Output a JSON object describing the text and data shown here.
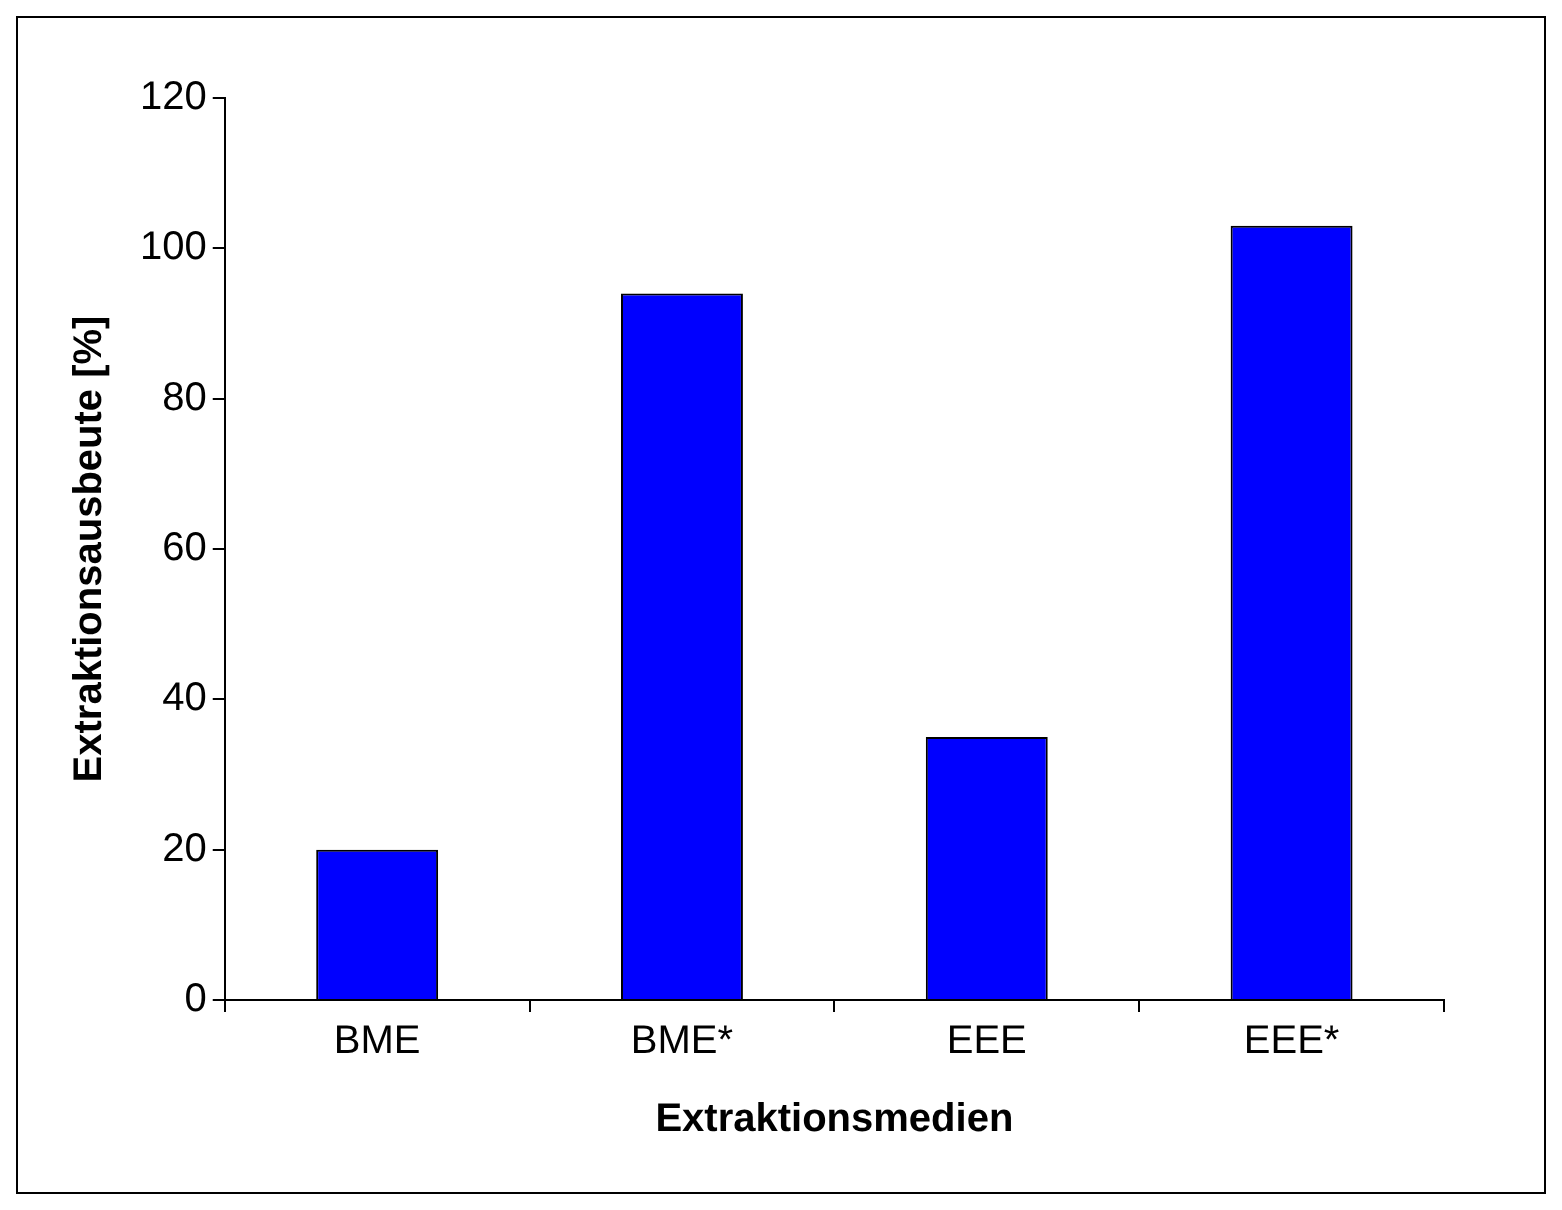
{
  "chart_data": {
    "type": "bar",
    "xlabel": "Extraktionsmedien",
    "ylabel": "Extraktionsausbeute [%]",
    "categories": [
      "BME",
      "BME*",
      "EEE",
      "EEE*"
    ],
    "values": [
      20,
      94,
      35,
      103
    ],
    "color": "#0000ff",
    "ylim": [
      0,
      120
    ],
    "yticks": [
      0,
      20,
      40,
      60,
      80,
      100,
      120
    ],
    "grid": false,
    "legend": false
  }
}
